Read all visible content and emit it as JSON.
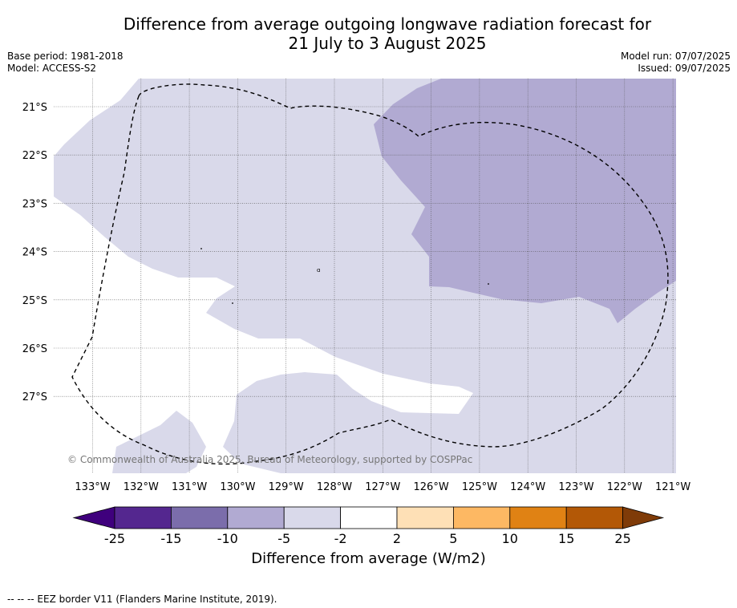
{
  "title_line1": "Difference from average outgoing longwave radiation forecast for",
  "title_line2": "21 July to 3 August 2025",
  "base_period": "Base period: 1981-2018",
  "model": "Model: ACCESS-S2",
  "model_run": "Model run: 07/07/2025",
  "issued": "Issued: 09/07/2025",
  "copyright": "© Commonwealth of Australia 2025, Bureau of Meteorology, supported by COSPPac",
  "lat_labels": [
    "21°S",
    "22°S",
    "23°S",
    "24°S",
    "25°S",
    "26°S",
    "27°S"
  ],
  "lon_labels": [
    "133°W",
    "132°W",
    "131°W",
    "130°W",
    "129°W",
    "128°W",
    "127°W",
    "126°W",
    "125°W",
    "124°W",
    "123°W",
    "122°W",
    "121°W"
  ],
  "colorbar": {
    "title": "Difference from average (W/m2)",
    "ticks": [
      "-25",
      "-15",
      "-10",
      "-5",
      "-2",
      "2",
      "5",
      "10",
      "15",
      "25"
    ],
    "colors": [
      "#3f007d",
      "#54278f",
      "#7b6dab",
      "#b1aad2",
      "#d9d9ea",
      "#ffffff",
      "#fee0b6",
      "#fdb863",
      "#e08214",
      "#b35806",
      "#7f3b08"
    ]
  },
  "footnote": "--  --  -- EEZ border V11 (Flanders Marine Institute, 2019)."
}
